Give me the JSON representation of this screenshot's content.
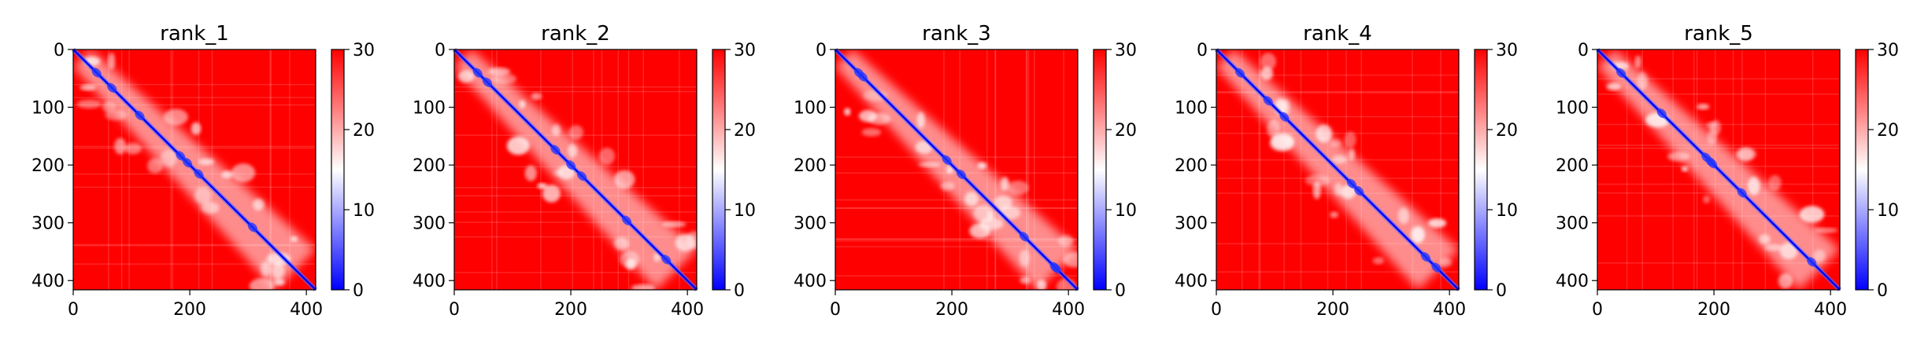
{
  "chart_data": [
    {
      "type": "heatmap",
      "title": "rank_1",
      "x_ticks": [
        0,
        200,
        400
      ],
      "y_ticks": [
        0,
        100,
        200,
        300,
        400
      ],
      "xlim": [
        0,
        416
      ],
      "ylim": [
        416,
        0
      ],
      "colorbar": {
        "ticks": [
          0,
          10,
          20,
          30
        ],
        "range": [
          0,
          30
        ],
        "colormap": "bwr",
        "colors": [
          "#0000ff",
          "#ffffff",
          "#ff0000"
        ]
      }
    },
    {
      "type": "heatmap",
      "title": "rank_2",
      "x_ticks": [
        0,
        200,
        400
      ],
      "y_ticks": [
        0,
        100,
        200,
        300,
        400
      ],
      "xlim": [
        0,
        416
      ],
      "ylim": [
        416,
        0
      ],
      "colorbar": {
        "ticks": [
          0,
          10,
          20,
          30
        ],
        "range": [
          0,
          30
        ],
        "colormap": "bwr",
        "colors": [
          "#0000ff",
          "#ffffff",
          "#ff0000"
        ]
      }
    },
    {
      "type": "heatmap",
      "title": "rank_3",
      "x_ticks": [
        0,
        200,
        400
      ],
      "y_ticks": [
        0,
        100,
        200,
        300,
        400
      ],
      "xlim": [
        0,
        416
      ],
      "ylim": [
        416,
        0
      ],
      "colorbar": {
        "ticks": [
          0,
          10,
          20,
          30
        ],
        "range": [
          0,
          30
        ],
        "colormap": "bwr",
        "colors": [
          "#0000ff",
          "#ffffff",
          "#ff0000"
        ]
      }
    },
    {
      "type": "heatmap",
      "title": "rank_4",
      "x_ticks": [
        0,
        200,
        400
      ],
      "y_ticks": [
        0,
        100,
        200,
        300,
        400
      ],
      "xlim": [
        0,
        416
      ],
      "ylim": [
        416,
        0
      ],
      "colorbar": {
        "ticks": [
          0,
          10,
          20,
          30
        ],
        "range": [
          0,
          30
        ],
        "colormap": "bwr",
        "colors": [
          "#0000ff",
          "#ffffff",
          "#ff0000"
        ]
      }
    },
    {
      "type": "heatmap",
      "title": "rank_5",
      "x_ticks": [
        0,
        200,
        400
      ],
      "y_ticks": [
        0,
        100,
        200,
        300,
        400
      ],
      "xlim": [
        0,
        416
      ],
      "ylim": [
        416,
        0
      ],
      "colorbar": {
        "ticks": [
          0,
          10,
          20,
          30
        ],
        "range": [
          0,
          30
        ],
        "colormap": "bwr",
        "colors": [
          "#0000ff",
          "#ffffff",
          "#ff0000"
        ]
      }
    }
  ]
}
